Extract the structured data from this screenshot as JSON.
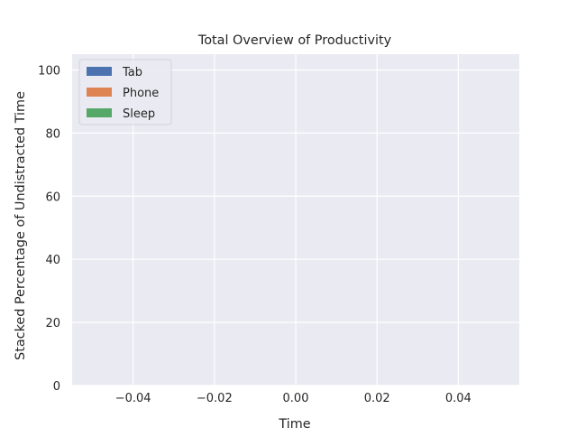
{
  "chart_data": {
    "type": "area",
    "stacked": true,
    "title": "Total Overview of Productivity",
    "xlabel": "Time",
    "ylabel": "Stacked Percentage of Undistracted Time",
    "xlim": [
      -0.055,
      0.055
    ],
    "ylim": [
      0,
      105
    ],
    "xticks": [
      -0.04,
      -0.02,
      0.0,
      0.02,
      0.04
    ],
    "xtick_labels": [
      "−0.04",
      "−0.02",
      "0.00",
      "0.02",
      "0.04"
    ],
    "yticks": [
      0,
      20,
      40,
      60,
      80,
      100
    ],
    "ytick_labels": [
      "0",
      "20",
      "40",
      "60",
      "80",
      "100"
    ],
    "x": [],
    "series": [
      {
        "name": "Tab",
        "values": [],
        "color": "#4c72b0"
      },
      {
        "name": "Phone",
        "values": [],
        "color": "#dd8452"
      },
      {
        "name": "Sleep",
        "values": [],
        "color": "#55a868"
      }
    ],
    "grid": true,
    "legend_position": "upper-left",
    "background_color": "#eaeaf2",
    "grid_color": "#ffffff"
  }
}
